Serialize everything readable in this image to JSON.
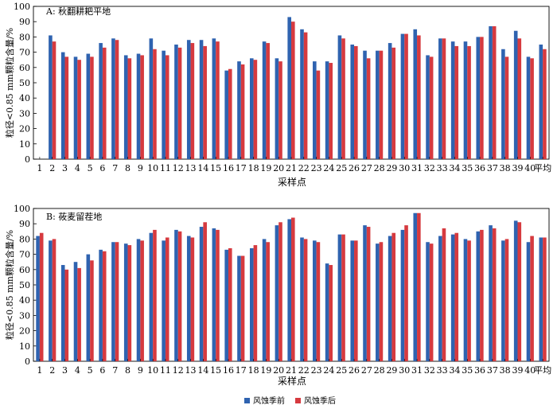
{
  "colors": {
    "before": "#2f63b0",
    "after": "#d63a3f"
  },
  "legend": {
    "before": "风蚀季前",
    "after": "风蚀季后"
  },
  "chart_data": [
    {
      "type": "bar",
      "title": "A: 秋翻耕耙平地",
      "xlabel": "采样点",
      "ylabel": "粒径<0.85 mm颗粒含量/%",
      "ylim": [
        0,
        100
      ],
      "yticks": [
        0,
        10,
        20,
        30,
        40,
        50,
        60,
        70,
        80,
        90,
        100
      ],
      "categories": [
        "1",
        "2",
        "3",
        "4",
        "5",
        "6",
        "7",
        "8",
        "9",
        "10",
        "11",
        "12",
        "13",
        "14",
        "15",
        "16",
        "17",
        "18",
        "19",
        "20",
        "21",
        "22",
        "23",
        "24",
        "25",
        "26",
        "27",
        "28",
        "29",
        "30",
        "31",
        "32",
        "33",
        "34",
        "35",
        "36",
        "37",
        "38",
        "39",
        "40",
        "平均"
      ],
      "series": [
        {
          "name": "风蚀季前",
          "values": [
            0,
            81,
            70,
            67,
            69,
            76,
            79,
            68,
            69,
            79,
            71,
            75,
            78,
            78,
            79,
            58,
            64,
            66,
            77,
            66,
            93,
            85,
            64,
            64,
            81,
            75,
            71,
            71,
            76,
            82,
            85,
            68,
            79,
            77,
            77,
            80,
            87,
            72,
            84,
            67,
            75
          ]
        },
        {
          "name": "风蚀季后",
          "values": [
            0,
            77,
            67,
            65,
            67,
            73,
            78,
            66,
            68,
            72,
            68,
            73,
            76,
            74,
            77,
            59,
            62,
            65,
            76,
            64,
            90,
            83,
            58,
            63,
            79,
            74,
            66,
            71,
            73,
            82,
            81,
            67,
            79,
            74,
            74,
            80,
            87,
            67,
            79,
            66,
            72
          ]
        }
      ]
    },
    {
      "type": "bar",
      "title": "B: 莜麦留茬地",
      "xlabel": "采样点",
      "ylabel": "粒径<0.85 mm颗粒含量/%",
      "ylim": [
        0,
        100
      ],
      "yticks": [
        0,
        10,
        20,
        30,
        40,
        50,
        60,
        70,
        80,
        90,
        100
      ],
      "categories": [
        "1",
        "2",
        "3",
        "4",
        "5",
        "6",
        "7",
        "8",
        "9",
        "10",
        "11",
        "12",
        "13",
        "14",
        "15",
        "16",
        "17",
        "18",
        "19",
        "20",
        "21",
        "22",
        "23",
        "24",
        "25",
        "26",
        "27",
        "28",
        "29",
        "30",
        "31",
        "32",
        "33",
        "34",
        "35",
        "36",
        "37",
        "38",
        "39",
        "40",
        "平均"
      ],
      "series": [
        {
          "name": "风蚀季前",
          "values": [
            82,
            79,
            63,
            65,
            70,
            73,
            78,
            77,
            80,
            84,
            79,
            86,
            82,
            88,
            87,
            73,
            69,
            74,
            80,
            89,
            93,
            81,
            79,
            64,
            83,
            79,
            89,
            77,
            82,
            86,
            97,
            78,
            82,
            83,
            80,
            85,
            89,
            79,
            92,
            78,
            81
          ]
        },
        {
          "name": "风蚀季后",
          "values": [
            84,
            80,
            60,
            61,
            66,
            72,
            78,
            76,
            79,
            86,
            81,
            85,
            81,
            91,
            86,
            74,
            69,
            76,
            78,
            91,
            94,
            80,
            78,
            63,
            83,
            79,
            88,
            78,
            84,
            89,
            97,
            77,
            87,
            84,
            79,
            86,
            87,
            80,
            91,
            82,
            81
          ]
        }
      ]
    }
  ]
}
